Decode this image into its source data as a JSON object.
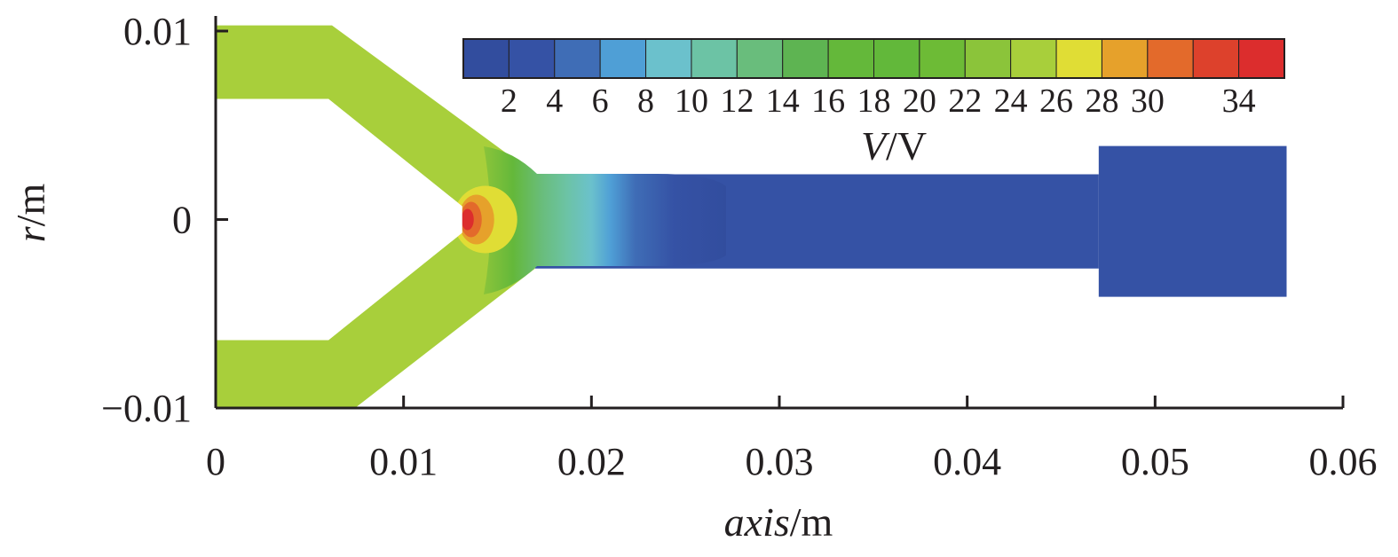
{
  "chart_data": {
    "type": "heatmap",
    "title": "",
    "xlabel": {
      "italic": "axis",
      "unit": "/m"
    },
    "ylabel": {
      "italic": "r",
      "unit": "/m"
    },
    "xlim": [
      0,
      0.06
    ],
    "ylim": [
      -0.01,
      0.01
    ],
    "x_ticks": [
      0,
      0.01,
      0.02,
      0.03,
      0.04,
      0.05,
      0.06
    ],
    "x_tick_labels": [
      "0",
      "0.01",
      "0.02",
      "0.03",
      "0.04",
      "0.05",
      "0.06"
    ],
    "y_ticks": [
      -0.01,
      0,
      0.01
    ],
    "y_tick_labels": [
      "−0.01",
      "0",
      "0.01"
    ],
    "grid": false,
    "colorbar": {
      "label": {
        "italic": "V",
        "unit": "/V"
      },
      "placement": "top-right",
      "levels": [
        0,
        2,
        4,
        6,
        8,
        10,
        12,
        14,
        16,
        18,
        20,
        22,
        24,
        26,
        28,
        30,
        32,
        34,
        36
      ],
      "tick_values": [
        2,
        4,
        6,
        8,
        10,
        12,
        14,
        16,
        18,
        20,
        22,
        24,
        26,
        28,
        30,
        34
      ],
      "tick_labels": [
        "2",
        "4",
        "6",
        "8",
        "10",
        "12",
        "14",
        "16",
        "18",
        "20",
        "22",
        "24",
        "26",
        "28",
        "30",
        "34"
      ],
      "colors": [
        "#324d9e",
        "#3552a5",
        "#3f6db6",
        "#4f9fd6",
        "#6bc1cc",
        "#6cc3a5",
        "#69bd7c",
        "#5eb452",
        "#64b83a",
        "#62b83a",
        "#6dbb36",
        "#8bc43a",
        "#a8cf3b",
        "#e0dd35",
        "#e6a12b",
        "#e36a2b",
        "#dd412c",
        "#dc2d2d"
      ]
    },
    "regions": {
      "upper_inlet_x": [
        0,
        0.006
      ],
      "upper_inlet_r": [
        0.0064,
        0.0103
      ],
      "lower_inlet_x": [
        0,
        0.006
      ],
      "lower_inlet_r": [
        -0.01,
        -0.0064
      ],
      "channel_x": [
        0.017,
        0.047
      ],
      "channel_r": [
        -0.0026,
        0.0024
      ],
      "outlet_x": [
        0.047,
        0.057
      ],
      "outlet_r": [
        -0.0041,
        0.0039
      ],
      "apex_x": 0.0135,
      "inlet_potential": 24,
      "channel_potential": 2,
      "apex_max_potential": 34
    }
  }
}
